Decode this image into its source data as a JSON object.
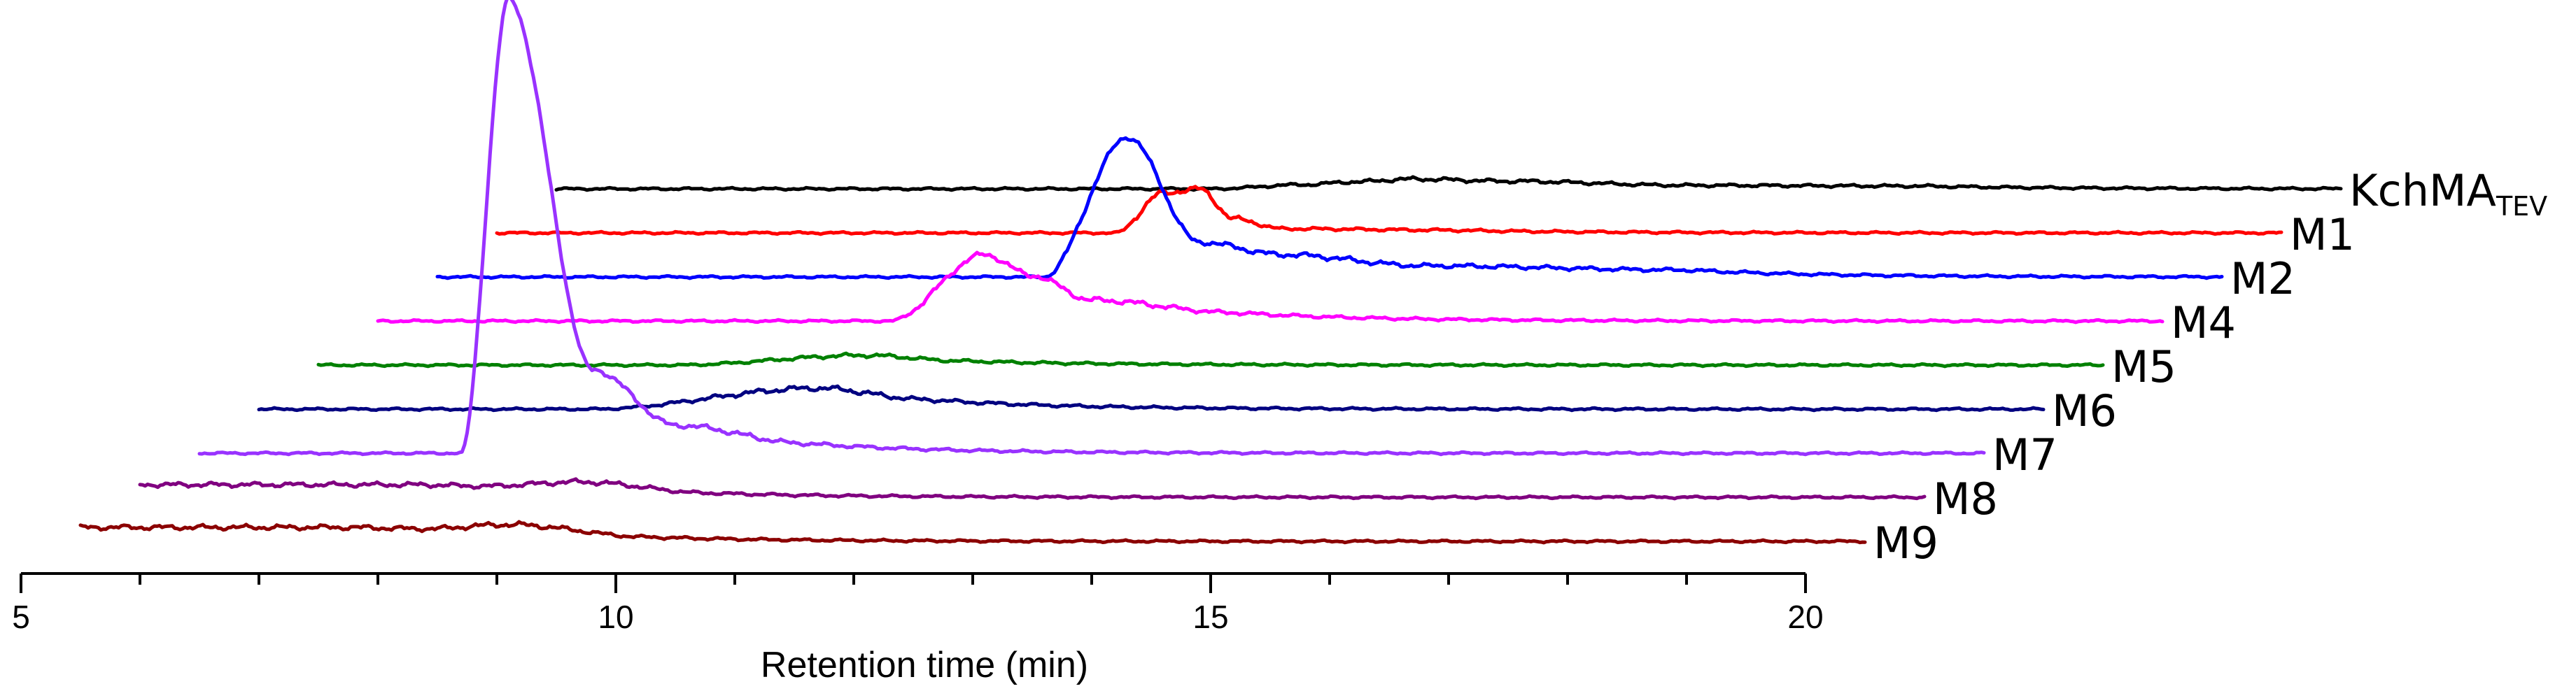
{
  "chart_data": {
    "type": "line",
    "subtype": "stacked-offset chromatograms (waterfall)",
    "xlabel": "Retention time (min)",
    "ylabel": "",
    "title": "",
    "xlim": [
      5,
      20
    ],
    "x_ticks": [
      5,
      10,
      15,
      20
    ],
    "x_tick_labels": [
      "5",
      "10",
      "15",
      "20"
    ],
    "grid": false,
    "legend": "none (series labelled at right end of each trace)",
    "series": [
      {
        "name": "KchMA",
        "name_subscript": "TEV",
        "color": "#000000",
        "x_range": [
          9.5,
          24.5
        ],
        "peaks": [
          [
            15.0,
            0.0
          ],
          [
            15.8,
            6.0
          ],
          [
            16.2,
            10.0
          ],
          [
            16.7,
            14.0
          ],
          [
            17.5,
            11.0
          ],
          [
            19.0,
            5.0
          ],
          [
            21.0,
            4.0
          ]
        ]
      },
      {
        "name": "M1",
        "color": "#ff0000",
        "x_range": [
          9.0,
          24.0
        ],
        "peaks": [
          [
            14.2,
            0.0
          ],
          [
            14.6,
            57.0
          ],
          [
            14.9,
            63.0
          ],
          [
            15.2,
            20.0
          ],
          [
            15.6,
            6.0
          ],
          [
            17.0,
            4.0
          ]
        ]
      },
      {
        "name": "M2",
        "color": "#0000ff",
        "x_range": [
          8.5,
          23.5
        ],
        "peaks": [
          [
            13.6,
            0.0
          ],
          [
            14.3,
            200.0
          ],
          [
            14.9,
            50.0
          ],
          [
            15.6,
            32.0
          ],
          [
            16.8,
            16.0
          ],
          [
            19.0,
            10.0
          ]
        ]
      },
      {
        "name": "M4",
        "color": "#ff00ff",
        "x_range": [
          8.0,
          23.0
        ],
        "peaks": [
          [
            12.3,
            0.0
          ],
          [
            13.1,
            95.0
          ],
          [
            13.5,
            65.0
          ],
          [
            14.0,
            30.0
          ],
          [
            15.2,
            12.0
          ]
        ]
      },
      {
        "name": "M5",
        "color": "#008000",
        "x_range": [
          7.5,
          22.5
        ],
        "peaks": [
          [
            10.5,
            0.0
          ],
          [
            12.1,
            14.0
          ],
          [
            12.9,
            6.0
          ]
        ]
      },
      {
        "name": "M6",
        "color": "#000080",
        "x_range": [
          7.0,
          22.0
        ],
        "peaks": [
          [
            9.8,
            0.0
          ],
          [
            11.7,
            30.0
          ],
          [
            12.6,
            14.0
          ]
        ]
      },
      {
        "name": "M7",
        "color": "#9932ff",
        "x_range": [
          6.5,
          21.5
        ],
        "peaks": [
          [
            8.7,
            0.0
          ],
          [
            9.1,
            650.0
          ],
          [
            9.8,
            120.0
          ],
          [
            10.5,
            40.0
          ],
          [
            11.6,
            14.0
          ]
        ]
      },
      {
        "name": "M8",
        "color": "#800080",
        "x_range": [
          6.0,
          21.0
        ],
        "peaks": [
          [
            8.3,
            18.0
          ],
          [
            8.9,
            16.0
          ],
          [
            9.7,
            22.0
          ],
          [
            10.8,
            6.0
          ]
        ]
      },
      {
        "name": "M9",
        "color": "#8b0000",
        "x_range": [
          5.5,
          20.5
        ],
        "peaks": [
          [
            7.7,
            20.0
          ],
          [
            8.4,
            18.0
          ],
          [
            9.1,
            24.0
          ],
          [
            10.3,
            6.0
          ]
        ]
      }
    ]
  }
}
